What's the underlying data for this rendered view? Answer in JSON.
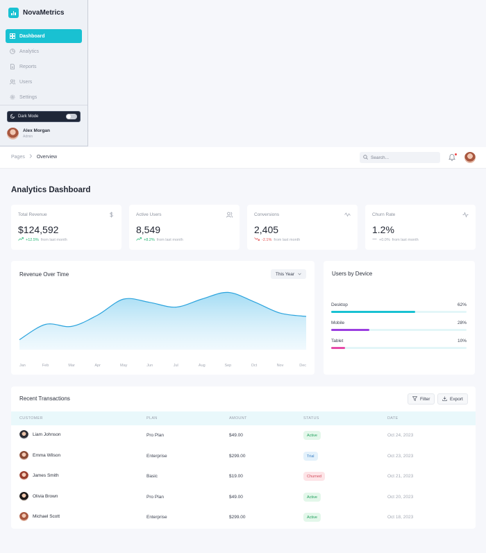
{
  "app": {
    "name": "NovaMetrics"
  },
  "sidebar": {
    "items": [
      {
        "label": "Dashboard",
        "icon": "grid-icon",
        "active": true
      },
      {
        "label": "Analytics",
        "icon": "pie-chart-icon",
        "active": false
      },
      {
        "label": "Reports",
        "icon": "file-icon",
        "active": false
      },
      {
        "label": "Users",
        "icon": "users-icon",
        "active": false
      },
      {
        "label": "Settings",
        "icon": "gear-icon",
        "active": false
      }
    ],
    "dark_mode_label": "Dark Mode",
    "dark_mode_on": false,
    "user": {
      "name": "Alex Morgan",
      "role": "Admin"
    }
  },
  "header": {
    "breadcrumb": [
      "Pages",
      "Overview"
    ],
    "search_placeholder": "Search...",
    "has_notification": true
  },
  "page": {
    "title": "Analytics Dashboard"
  },
  "stats": [
    {
      "label": "Total Revenue",
      "value": "$124,592",
      "change": "+12.5%",
      "trend": "up",
      "suffix": "from last month",
      "icon": "dollar-icon"
    },
    {
      "label": "Active Users",
      "value": "8,549",
      "change": "+8.2%",
      "trend": "up",
      "suffix": "from last month",
      "icon": "users-icon"
    },
    {
      "label": "Conversions",
      "value": "2,405",
      "change": "-2.1%",
      "trend": "down",
      "suffix": "from last month",
      "icon": "activity-icon"
    },
    {
      "label": "Churn Rate",
      "value": "1.2%",
      "change": "+0.0%",
      "trend": "flat",
      "suffix": "from last month",
      "icon": "pulse-icon"
    }
  ],
  "revenue": {
    "title": "Revenue Over Time",
    "period": "This Year"
  },
  "devices": {
    "title": "Users by Device",
    "items": [
      {
        "label": "Desktop",
        "value": "62%",
        "fraction": 0.62,
        "color": "#19c1d2"
      },
      {
        "label": "Mobile",
        "value": "28%",
        "fraction": 0.28,
        "color": "#9b3ee0"
      },
      {
        "label": "Tablet",
        "value": "10%",
        "fraction": 0.1,
        "color": "#e64aa8"
      }
    ]
  },
  "transactions": {
    "title": "Recent Transactions",
    "filter_label": "Filter",
    "export_label": "Export",
    "columns": [
      "CUSTOMER",
      "PLAN",
      "AMOUNT",
      "STATUS",
      "DATE"
    ],
    "rows": [
      {
        "customer": "Liam Johnson",
        "plan": "Pro Plan",
        "amount": "$49.00",
        "status": "Active",
        "date": "Oct 24, 2023"
      },
      {
        "customer": "Emma Wilson",
        "plan": "Enterprise",
        "amount": "$299.00",
        "status": "Trial",
        "date": "Oct 23, 2023"
      },
      {
        "customer": "James Smith",
        "plan": "Basic",
        "amount": "$19.00",
        "status": "Churned",
        "date": "Oct 21, 2023"
      },
      {
        "customer": "Olivia Brown",
        "plan": "Pro Plan",
        "amount": "$49.00",
        "status": "Active",
        "date": "Oct 20, 2023"
      },
      {
        "customer": "Michael Scott",
        "plan": "Enterprise",
        "amount": "$299.00",
        "status": "Active",
        "date": "Oct 18, 2023"
      }
    ]
  },
  "chart_data": {
    "type": "area",
    "categories": [
      "Jan",
      "Feb",
      "Mar",
      "Apr",
      "May",
      "Jun",
      "Jul",
      "Aug",
      "Sep",
      "Oct",
      "Nov",
      "Dec"
    ],
    "values": [
      15,
      38,
      35,
      52,
      76,
      71,
      64,
      76,
      86,
      72,
      55,
      50
    ],
    "ylim": [
      0,
      100
    ],
    "grid": false,
    "legend": "none",
    "color": "#2ba3dd"
  }
}
